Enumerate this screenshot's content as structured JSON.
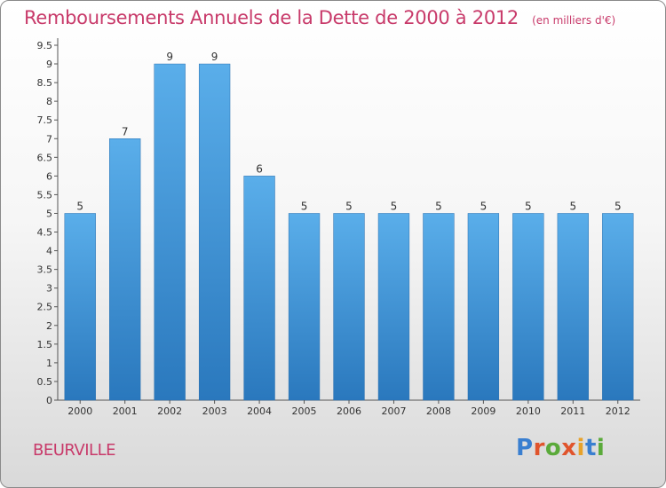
{
  "title": "Remboursements Annuels de la Dette de 2000 à 2012",
  "unit": "(en milliers d'€)",
  "commune": "BEURVILLE",
  "logo": {
    "letters": [
      "P",
      "r",
      "o",
      "x",
      "i",
      "t",
      "i"
    ],
    "colors": [
      "#3a7fd0",
      "#e0542c",
      "#5aaa3a",
      "#e0542c",
      "#e8a22a",
      "#3a7fd0",
      "#5aaa3a"
    ]
  },
  "chart_data": {
    "type": "bar",
    "categories": [
      "2000",
      "2001",
      "2002",
      "2003",
      "2004",
      "2005",
      "2006",
      "2007",
      "2008",
      "2009",
      "2010",
      "2011",
      "2012"
    ],
    "values": [
      5,
      7,
      9,
      9,
      6,
      5,
      5,
      5,
      5,
      5,
      5,
      5,
      5
    ],
    "data_labels": [
      "5",
      "7",
      "9",
      "9",
      "6",
      "5",
      "5",
      "5",
      "5",
      "5",
      "5",
      "5",
      "5"
    ],
    "yticks": [
      "0",
      "0.5",
      "1",
      "1.5",
      "2",
      "2.5",
      "3",
      "3.5",
      "4",
      "4.5",
      "5",
      "5.5",
      "6",
      "6.5",
      "7",
      "7.5",
      "8",
      "8.5",
      "9",
      "9.5"
    ],
    "ylim": [
      0,
      9.5
    ],
    "grid": false,
    "bar_color": "#3d8fd6",
    "title_color": "#c83a6a"
  }
}
